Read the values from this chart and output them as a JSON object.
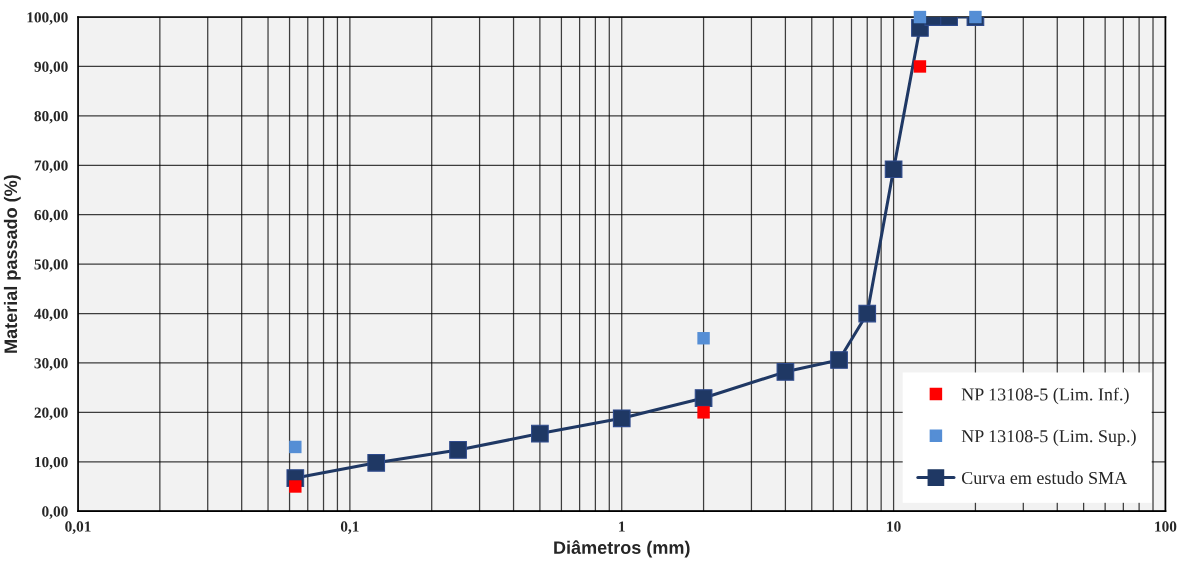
{
  "chart_data": {
    "type": "line",
    "xlabel": "Diâmetros (mm)",
    "ylabel": "Material passado (%)",
    "log": "x",
    "xlim": [
      0.01,
      100
    ],
    "xticks": [
      {
        "value": 0.01,
        "label": "0,01"
      },
      {
        "value": 0.1,
        "label": "0,1"
      },
      1,
      10,
      100
    ],
    "ylim": [
      0,
      100
    ],
    "yticks": [
      {
        "value": 0,
        "label": "0,00"
      },
      {
        "value": 10,
        "label": "10,00"
      },
      {
        "value": 20,
        "label": "20,00"
      },
      {
        "value": 30,
        "label": "30,00"
      },
      {
        "value": 40,
        "label": "40,00"
      },
      {
        "value": 50,
        "label": "50,00"
      },
      {
        "value": 60,
        "label": "60,00"
      },
      {
        "value": 70,
        "label": "70,00"
      },
      {
        "value": 80,
        "label": "80,00"
      },
      {
        "value": 90,
        "label": "90,00"
      },
      {
        "value": 100,
        "label": "100,00"
      }
    ],
    "grid": true,
    "legend": "bottom right",
    "marker": "square",
    "series": [
      {
        "name": "NP 13108-5 (Lim. Inf.)",
        "type": "scatter",
        "color": "#ff0000",
        "x": [
          0.063,
          2,
          12.5
        ],
        "values": [
          5,
          20,
          90
        ]
      },
      {
        "name": "NP 13108-5 (Lim. Sup.)",
        "type": "scatter",
        "color": "#558ed5",
        "x": [
          0.063,
          2,
          12.5,
          20
        ],
        "values": [
          13,
          35,
          100,
          100
        ]
      },
      {
        "name": "Curva em estudo SMA",
        "color": "#1f3864",
        "x": [
          0.063,
          0.125,
          0.25,
          0.5,
          1,
          2,
          4,
          6.3,
          8,
          10,
          12.5,
          14,
          16,
          20
        ],
        "values": [
          6.7,
          9.8,
          12.4,
          15.7,
          18.8,
          22.9,
          28.2,
          30.6,
          40,
          69.2,
          97.8,
          100,
          100,
          100
        ]
      }
    ]
  }
}
